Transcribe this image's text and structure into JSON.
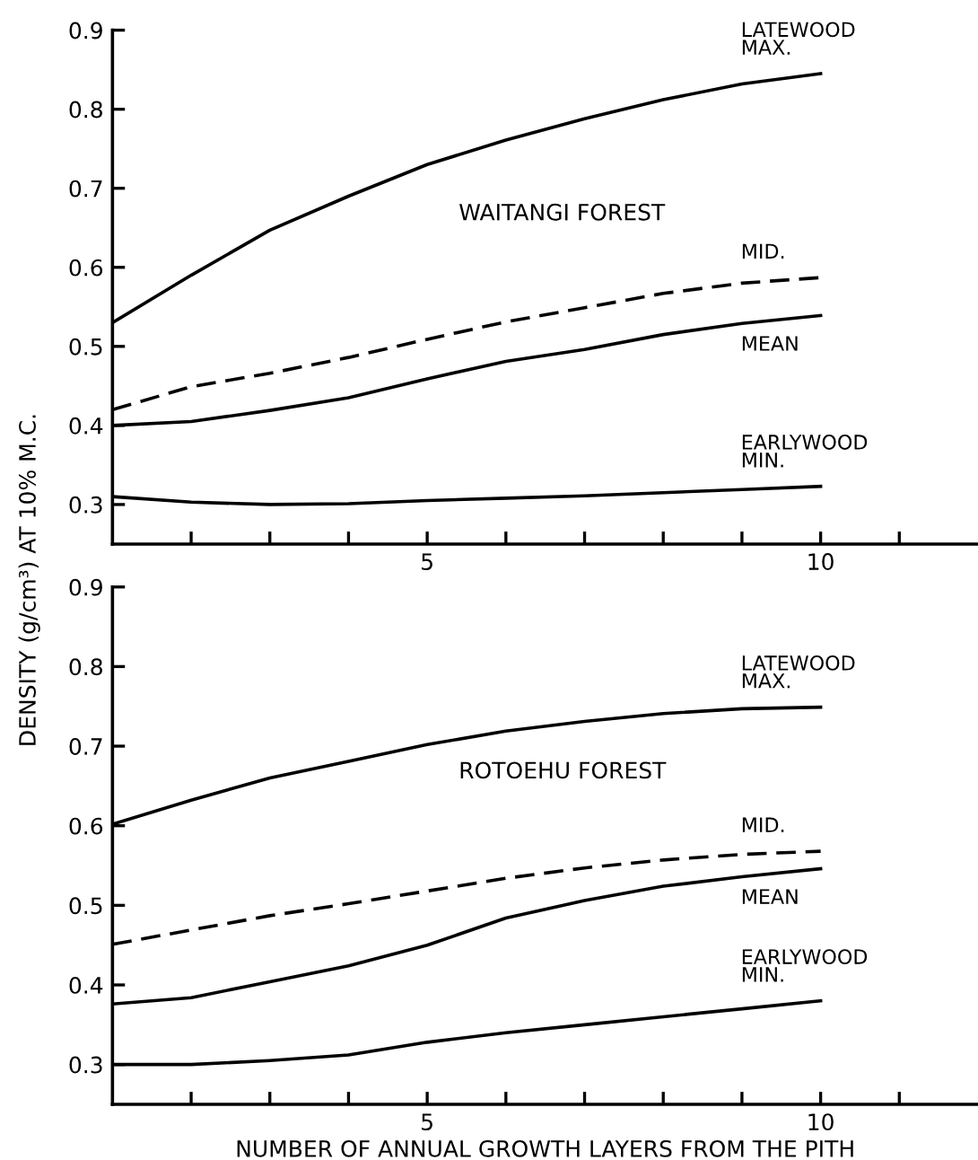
{
  "chart_data": [
    {
      "type": "line",
      "title": "WAITANGI FOREST",
      "ylabel": "DENSITY (g/cm³) AT 10% M.C.",
      "x": [
        1,
        2,
        3,
        4,
        5,
        6,
        7,
        8,
        9,
        10
      ],
      "series": [
        {
          "name": "LATEWOOD\nMAX.",
          "color": "#000000",
          "line_style": "solid",
          "values": [
            0.53,
            0.59,
            0.647,
            0.69,
            0.73,
            0.761,
            0.788,
            0.812,
            0.832,
            0.845
          ]
        },
        {
          "name": "MID.",
          "color": "#000000",
          "line_style": "dashed",
          "values": [
            0.42,
            0.449,
            0.466,
            0.486,
            0.509,
            0.531,
            0.549,
            0.567,
            0.58,
            0.587
          ]
        },
        {
          "name": "MEAN",
          "color": "#000000",
          "line_style": "solid",
          "values": [
            0.4,
            0.405,
            0.419,
            0.435,
            0.459,
            0.481,
            0.496,
            0.515,
            0.529,
            0.539
          ]
        },
        {
          "name": "EARLYWOOD\nMIN.",
          "color": "#000000",
          "line_style": "solid",
          "values": [
            0.31,
            0.303,
            0.3,
            0.301,
            0.305,
            0.308,
            0.311,
            0.315,
            0.319,
            0.323
          ]
        }
      ],
      "xlim": [
        1,
        12
      ],
      "xticks": [
        {
          "value": 2,
          "label": null
        },
        {
          "value": 3,
          "label": null
        },
        {
          "value": 4,
          "label": null
        },
        5,
        {
          "value": 6,
          "label": null
        },
        {
          "value": 7,
          "label": null
        },
        {
          "value": 8,
          "label": null
        },
        {
          "value": 9,
          "label": null
        },
        10,
        {
          "value": 11,
          "label": null
        }
      ],
      "ylim": [
        0.25,
        0.9
      ],
      "yticks": [
        0.3,
        0.4,
        0.5,
        0.6,
        0.7,
        0.8,
        0.9
      ],
      "grid": false,
      "legend": false
    },
    {
      "type": "line",
      "title": "ROTOEHU FOREST",
      "xlabel": "NUMBER OF ANNUAL GROWTH LAYERS FROM THE PITH",
      "x": [
        1,
        2,
        3,
        4,
        5,
        6,
        7,
        8,
        9,
        10
      ],
      "series": [
        {
          "name": "LATEWOOD\nMAX.",
          "color": "#000000",
          "line_style": "solid",
          "values": [
            0.602,
            0.632,
            0.66,
            0.681,
            0.702,
            0.719,
            0.731,
            0.741,
            0.747,
            0.749
          ]
        },
        {
          "name": "MID.",
          "color": "#000000",
          "line_style": "dashed",
          "values": [
            0.451,
            0.469,
            0.487,
            0.502,
            0.518,
            0.534,
            0.547,
            0.557,
            0.564,
            0.568
          ]
        },
        {
          "name": "MEAN",
          "color": "#000000",
          "line_style": "solid",
          "values": [
            0.376,
            0.384,
            0.404,
            0.424,
            0.45,
            0.484,
            0.506,
            0.524,
            0.536,
            0.546
          ]
        },
        {
          "name": "EARLYWOOD\nMIN.",
          "color": "#000000",
          "line_style": "solid",
          "values": [
            0.3,
            0.3,
            0.305,
            0.312,
            0.328,
            0.34,
            0.35,
            0.36,
            0.37,
            0.38
          ]
        }
      ],
      "xlim": [
        1,
        12
      ],
      "xticks": [
        {
          "value": 2,
          "label": null
        },
        {
          "value": 3,
          "label": null
        },
        {
          "value": 4,
          "label": null
        },
        5,
        {
          "value": 6,
          "label": null
        },
        {
          "value": 7,
          "label": null
        },
        {
          "value": 8,
          "label": null
        },
        {
          "value": 9,
          "label": null
        },
        10,
        {
          "value": 11,
          "label": null
        }
      ],
      "ylim": [
        0.25,
        0.9
      ],
      "yticks": [
        0.3,
        0.4,
        0.5,
        0.6,
        0.7,
        0.8,
        0.9
      ],
      "grid": false,
      "legend": false
    }
  ]
}
